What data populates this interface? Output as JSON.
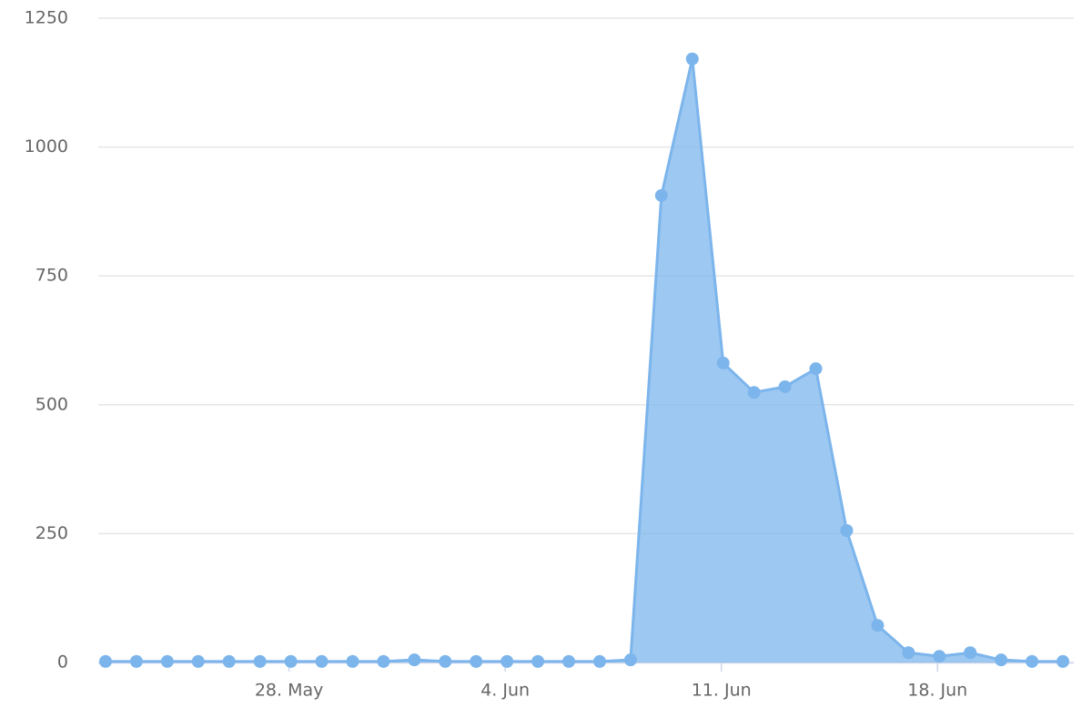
{
  "chart_data": {
    "type": "area",
    "categories": [
      null,
      null,
      null,
      null,
      null,
      null,
      "28. May",
      null,
      null,
      null,
      null,
      null,
      null,
      "4. Jun",
      null,
      null,
      null,
      null,
      null,
      null,
      "11. Jun",
      null,
      null,
      null,
      null,
      null,
      null,
      "18. Jun",
      null,
      null,
      null,
      null
    ],
    "values": [
      2,
      2,
      2,
      2,
      2,
      2,
      2,
      2,
      2,
      2,
      5,
      2,
      2,
      2,
      2,
      2,
      2,
      5,
      906,
      1171,
      581,
      524,
      535,
      570,
      256,
      72,
      19,
      12,
      19,
      5,
      2,
      2
    ],
    "color": "#7cb5ec",
    "ylim": [
      0,
      1250
    ],
    "yticks": [
      0,
      250,
      500,
      750,
      1000,
      1250
    ],
    "grid": true
  }
}
